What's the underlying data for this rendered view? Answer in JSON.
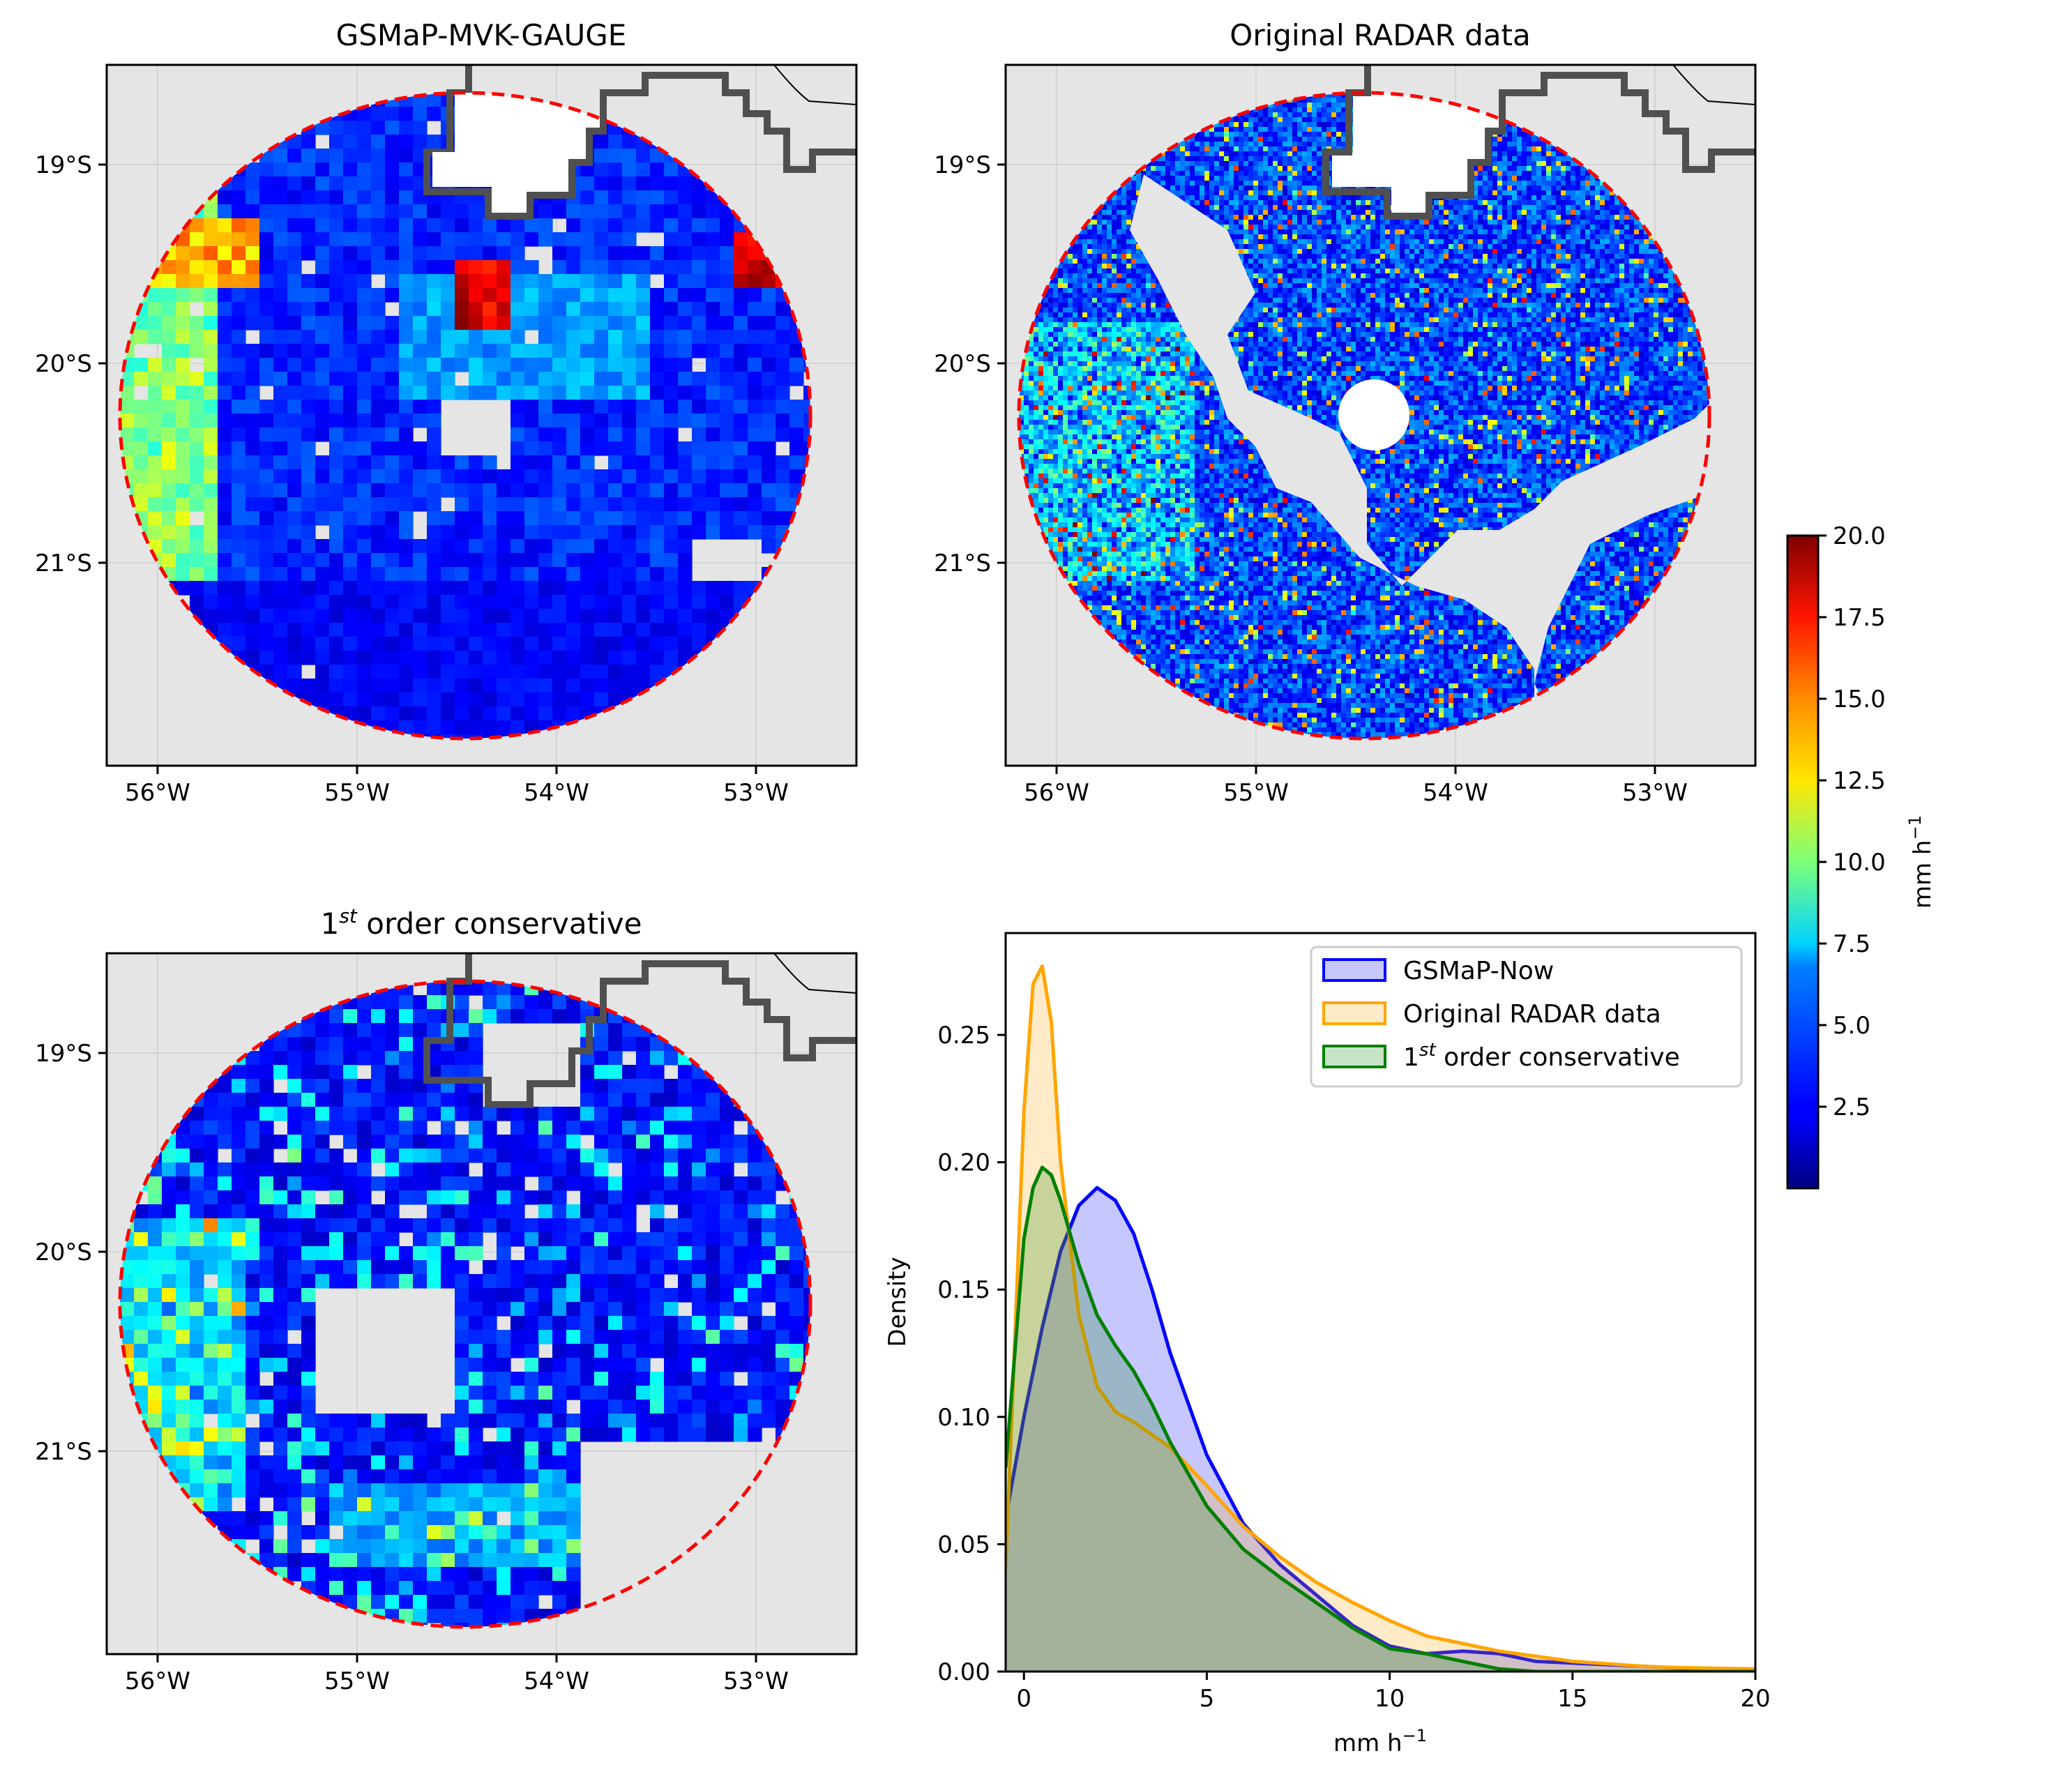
{
  "figure": {
    "panels": [
      {
        "id": "gsmap",
        "title": "GSMaP-MVK-GAUGE",
        "xticks": [
          "56°W",
          "55°W",
          "54°W",
          "53°W"
        ],
        "yticks": [
          "19°S",
          "20°S",
          "21°S"
        ]
      },
      {
        "id": "radar",
        "title": "Original RADAR data",
        "xticks": [
          "56°W",
          "55°W",
          "54°W",
          "53°W"
        ],
        "yticks": [
          "19°S",
          "20°S",
          "21°S"
        ]
      },
      {
        "id": "conservative",
        "title_main": "1",
        "title_sup": "st",
        "title_rest": " order conservative",
        "xticks": [
          "56°W",
          "55°W",
          "54°W",
          "53°W"
        ],
        "yticks": [
          "19°S",
          "20°S",
          "21°S"
        ]
      }
    ],
    "colorbar": {
      "label": "mm h",
      "label_sup": "−1",
      "ticks": [
        "20.0",
        "17.5",
        "15.0",
        "12.5",
        "10.0",
        "7.5",
        "5.0",
        "2.5"
      ],
      "range": [
        0,
        20
      ],
      "colormap": "jet"
    },
    "colors": {
      "radar_circle": "#ff0000",
      "border_line": "#505050",
      "map_background": "#e5e5e5"
    }
  },
  "chart_data": [
    {
      "type": "map",
      "title": "GSMaP-MVK-GAUGE",
      "xlim_lon": [
        -56.3,
        -52.5
      ],
      "ylim_lat": [
        -22.0,
        -18.5
      ],
      "description_values": "gridded precipitation, mostly 1-5 mm h−1, with 8-12 mm h−1 on western edge and >18 mm h−1 in small cells near 19.6°S"
    },
    {
      "type": "map",
      "title": "Original RADAR data",
      "xlim_lon": [
        -56.3,
        -52.5
      ],
      "ylim_lat": [
        -22.0,
        -18.5
      ]
    },
    {
      "type": "map",
      "title": "1st order conservative",
      "xlim_lon": [
        -56.3,
        -52.5
      ],
      "ylim_lat": [
        -22.0,
        -18.5
      ]
    },
    {
      "type": "area",
      "xlabel": "mm h",
      "xlabel_sup": "−1",
      "ylabel": "Density",
      "xlim": [
        -0.5,
        20
      ],
      "ylim": [
        0,
        0.29
      ],
      "xticks": [
        "0",
        "5",
        "10",
        "15",
        "20"
      ],
      "yticks": [
        "0.00",
        "0.05",
        "0.10",
        "0.15",
        "0.20",
        "0.25"
      ],
      "legend_position": "upper-right",
      "series": [
        {
          "name": "GSMaP-Now",
          "color": "#0000ff",
          "x": [
            -0.5,
            0,
            0.5,
            1,
            1.5,
            2,
            2.5,
            3,
            3.5,
            4,
            5,
            6,
            7,
            8,
            9,
            10,
            11,
            12,
            13,
            14,
            20
          ],
          "y": [
            0.06,
            0.1,
            0.135,
            0.165,
            0.183,
            0.19,
            0.185,
            0.172,
            0.15,
            0.125,
            0.085,
            0.058,
            0.042,
            0.03,
            0.018,
            0.01,
            0.007,
            0.008,
            0.007,
            0.004,
            0.0
          ]
        },
        {
          "name": "Original RADAR data",
          "color": "#ffa500",
          "x": [
            -0.5,
            0,
            0.25,
            0.5,
            0.75,
            1,
            1.5,
            2,
            2.5,
            3,
            4,
            5,
            6,
            7,
            8,
            9,
            10,
            11,
            12,
            13,
            14,
            15,
            16,
            17,
            18,
            20
          ],
          "y": [
            0.04,
            0.22,
            0.27,
            0.277,
            0.255,
            0.2,
            0.14,
            0.112,
            0.102,
            0.098,
            0.088,
            0.073,
            0.057,
            0.045,
            0.035,
            0.027,
            0.02,
            0.014,
            0.011,
            0.008,
            0.006,
            0.004,
            0.003,
            0.002,
            0.0015,
            0.001
          ]
        },
        {
          "name": "1st order conservative",
          "name_main": "1",
          "name_sup": "st",
          "name_rest": " order conservative",
          "color": "#008000",
          "x": [
            -0.5,
            0,
            0.25,
            0.5,
            0.75,
            1,
            1.5,
            2,
            2.5,
            3,
            3.5,
            4,
            5,
            6,
            7,
            8,
            9,
            10,
            11,
            12,
            13,
            14,
            20
          ],
          "y": [
            0.08,
            0.17,
            0.19,
            0.198,
            0.195,
            0.185,
            0.16,
            0.14,
            0.128,
            0.118,
            0.105,
            0.09,
            0.065,
            0.048,
            0.037,
            0.027,
            0.017,
            0.009,
            0.007,
            0.004,
            0.001,
            0.0,
            0.0
          ]
        }
      ]
    }
  ]
}
